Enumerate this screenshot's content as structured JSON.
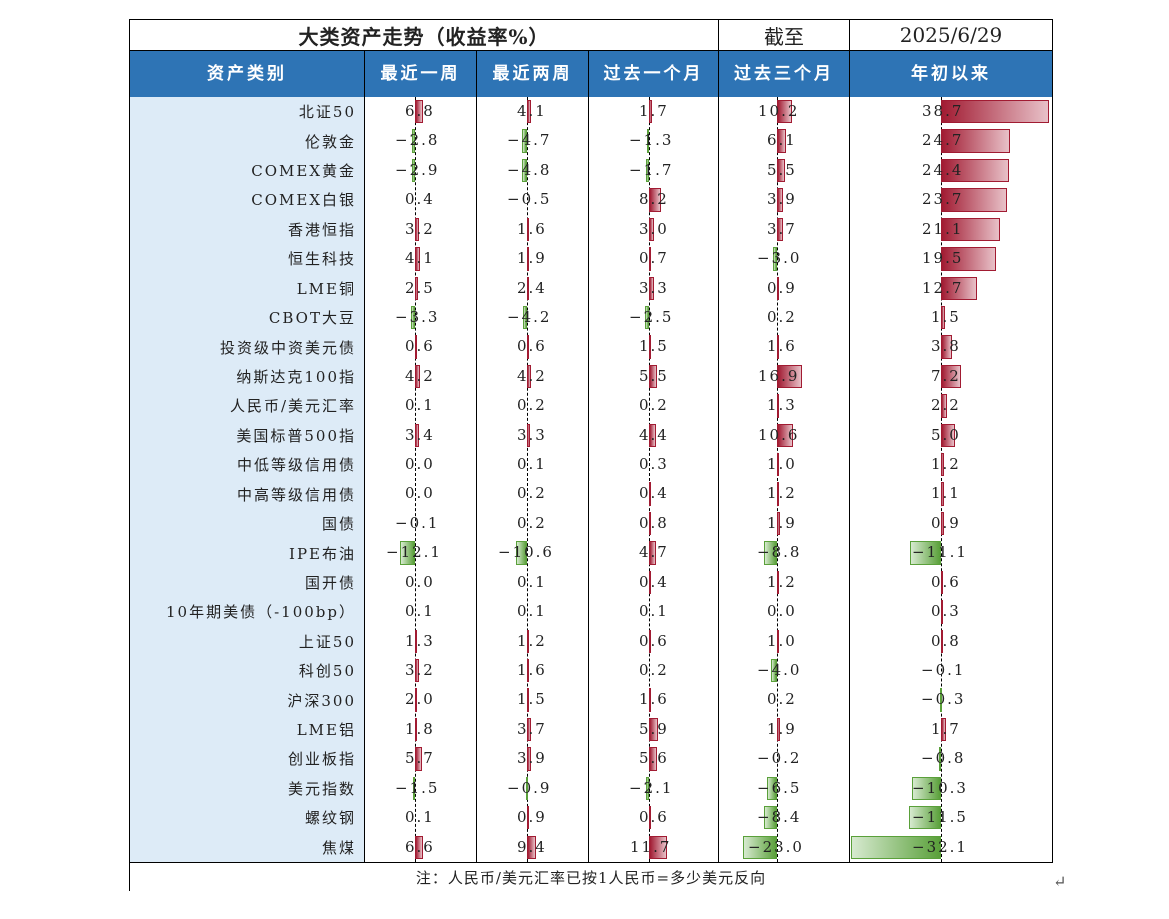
{
  "title": "大类资产走势（收益率%）",
  "asof_label": "截至",
  "asof_date": "2025/6/29",
  "note": "注：人民币/美元汇率已按1人民币=多少美元反向",
  "return_mark": "↵",
  "chart_data": {
    "type": "table",
    "title": "大类资产走势（收益率%）",
    "columns": [
      "资产类别",
      "最近一周",
      "最近两周",
      "过去一个月",
      "过去三个月",
      "年初以来"
    ],
    "rows": [
      {
        "name": "北证50",
        "values": [
          6.8,
          4.1,
          1.7,
          10.2,
          38.7
        ]
      },
      {
        "name": "伦敦金",
        "values": [
          -2.8,
          -4.7,
          -1.3,
          6.1,
          24.7
        ]
      },
      {
        "name": "COMEX黄金",
        "values": [
          -2.9,
          -4.8,
          -1.7,
          5.5,
          24.4
        ]
      },
      {
        "name": "COMEX白银",
        "values": [
          0.4,
          -0.5,
          8.2,
          3.9,
          23.7
        ]
      },
      {
        "name": "香港恒指",
        "values": [
          3.2,
          1.6,
          3.0,
          3.7,
          21.1
        ]
      },
      {
        "name": "恒生科技",
        "values": [
          4.1,
          1.9,
          0.7,
          -3.0,
          19.5
        ]
      },
      {
        "name": "LME铜",
        "values": [
          2.5,
          2.4,
          3.3,
          0.9,
          12.7
        ]
      },
      {
        "name": "CBOT大豆",
        "values": [
          -3.3,
          -4.2,
          -2.5,
          0.2,
          1.5
        ]
      },
      {
        "name": "投资级中资美元债",
        "values": [
          0.6,
          0.6,
          1.5,
          1.6,
          3.8
        ]
      },
      {
        "name": "纳斯达克100指",
        "values": [
          4.2,
          4.2,
          5.5,
          16.9,
          7.2
        ]
      },
      {
        "name": "人民币/美元汇率",
        "values": [
          0.1,
          0.2,
          0.2,
          1.3,
          2.2
        ]
      },
      {
        "name": "美国标普500指",
        "values": [
          3.4,
          3.3,
          4.4,
          10.6,
          5.0
        ]
      },
      {
        "name": "中低等级信用债",
        "values": [
          0.0,
          0.1,
          0.3,
          1.0,
          1.2
        ]
      },
      {
        "name": "中高等级信用债",
        "values": [
          0.0,
          0.2,
          0.4,
          1.2,
          1.1
        ]
      },
      {
        "name": "国债",
        "values": [
          -0.1,
          0.2,
          0.8,
          1.9,
          0.9
        ]
      },
      {
        "name": "IPE布油",
        "values": [
          -12.1,
          -10.6,
          4.7,
          -8.8,
          -11.1
        ]
      },
      {
        "name": "国开债",
        "values": [
          0.0,
          0.1,
          0.4,
          1.2,
          0.6
        ]
      },
      {
        "name": "10年期美债（-100bp）",
        "values": [
          0.1,
          0.1,
          0.1,
          0.0,
          0.3
        ]
      },
      {
        "name": "上证50",
        "values": [
          1.3,
          1.2,
          0.6,
          1.0,
          0.8
        ]
      },
      {
        "name": "科创50",
        "values": [
          3.2,
          1.6,
          0.2,
          -4.0,
          -0.1
        ]
      },
      {
        "name": "沪深300",
        "values": [
          2.0,
          1.5,
          1.6,
          0.2,
          -0.3
        ]
      },
      {
        "name": "LME铝",
        "values": [
          1.8,
          3.7,
          5.9,
          1.9,
          1.7
        ]
      },
      {
        "name": "创业板指",
        "values": [
          5.7,
          3.9,
          5.6,
          -0.2,
          -0.8
        ]
      },
      {
        "name": "美元指数",
        "values": [
          -1.5,
          -0.9,
          -2.1,
          -6.5,
          -10.3
        ]
      },
      {
        "name": "螺纹钢",
        "values": [
          0.1,
          0.9,
          0.6,
          -8.4,
          -11.5
        ]
      },
      {
        "name": "焦煤",
        "values": [
          6.6,
          9.4,
          11.7,
          -23.0,
          -32.1
        ]
      }
    ],
    "colors": {
      "positive": "#a11b32",
      "negative": "#5aa03a",
      "header": "#2e74b5",
      "label_bg": "#ddebf7"
    }
  }
}
